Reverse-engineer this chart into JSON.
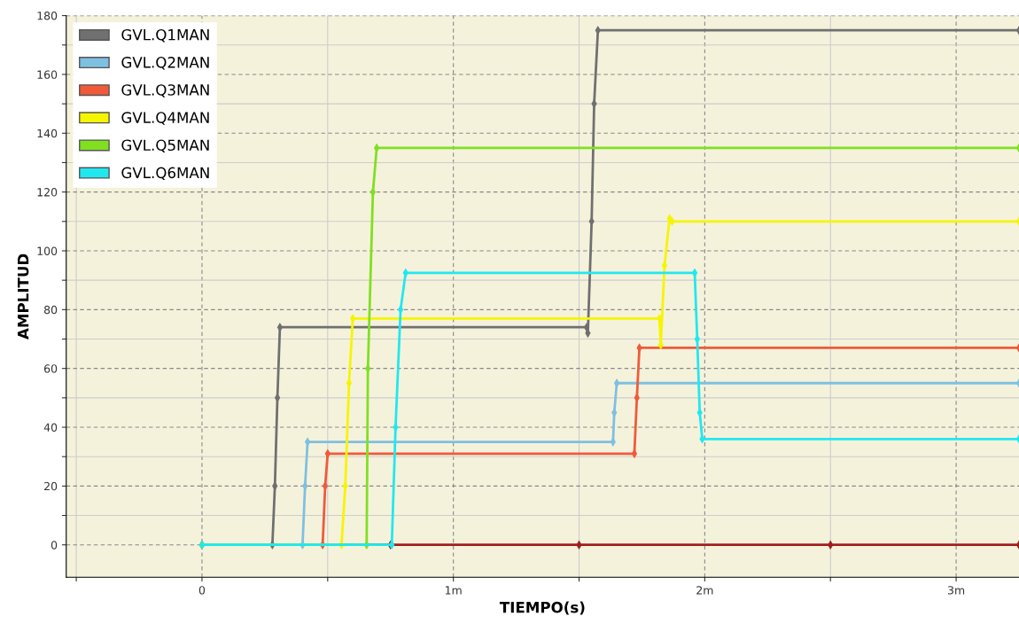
{
  "chart_data": {
    "type": "line",
    "xlabel": "TIEMPO(s)",
    "ylabel": "AMPLITUD",
    "xlim": [
      -0.54,
      3.25
    ],
    "ylim": [
      -11,
      180
    ],
    "xticks": [
      {
        "value": -0.5,
        "label": null
      },
      0,
      {
        "value": 0.5,
        "label": null
      },
      {
        "value": 1,
        "label": "1m"
      },
      {
        "value": 1.5,
        "label": null
      },
      {
        "value": 2,
        "label": "2m"
      },
      {
        "value": 2.5,
        "label": null
      },
      {
        "value": 3,
        "label": "3m"
      }
    ],
    "yticks": [
      0,
      {
        "value": 10,
        "label": null
      },
      20,
      {
        "value": 30,
        "label": null
      },
      40,
      {
        "value": 50,
        "label": null
      },
      60,
      {
        "value": 70,
        "label": null
      },
      80,
      {
        "value": 90,
        "label": null
      },
      100,
      {
        "value": 110,
        "label": null
      },
      120,
      {
        "value": 130,
        "label": null
      },
      140,
      {
        "value": 150,
        "label": null
      },
      160,
      {
        "value": 170,
        "label": null
      },
      180
    ],
    "grid": true,
    "legend": "top left",
    "marker": "diamond",
    "line_style": "solid",
    "series": [
      {
        "color": "#a02020",
        "x": [
          0,
          0.75,
          1.5,
          2.5,
          3.25
        ],
        "values": [
          0,
          0,
          0,
          0,
          0
        ]
      },
      {
        "name": "GVL.Q1MAN",
        "color": "#707070",
        "x": [
          0,
          0.28,
          0.29,
          0.3,
          0.31,
          1.53,
          1.535,
          1.55,
          1.56,
          1.575,
          3.25
        ],
        "values": [
          0,
          0,
          20,
          50,
          74,
          74,
          72,
          110,
          150,
          175,
          175
        ]
      },
      {
        "name": "GVL.Q2MAN",
        "color": "#7ec0e0",
        "x": [
          0,
          0.4,
          0.41,
          0.42,
          1.635,
          1.64,
          1.65,
          3.25
        ],
        "values": [
          0,
          0,
          20,
          35,
          35,
          45,
          55,
          55
        ]
      },
      {
        "name": "GVL.Q3MAN",
        "color": "#f05a3a",
        "x": [
          0,
          0.48,
          0.49,
          0.5,
          1.72,
          1.73,
          1.74,
          3.25
        ],
        "values": [
          0,
          0,
          20,
          31,
          31,
          50,
          67,
          67
        ]
      },
      {
        "name": "GVL.Q4MAN",
        "color": "#f5f500",
        "x": [
          0,
          0.555,
          0.57,
          0.585,
          0.6,
          1.82,
          1.825,
          1.84,
          1.86,
          1.87,
          3.25
        ],
        "values": [
          0,
          0,
          20,
          55,
          77,
          77,
          68,
          95,
          111,
          110,
          110
        ]
      },
      {
        "name": "GVL.Q5MAN",
        "color": "#80e020",
        "x": [
          0,
          0.655,
          0.66,
          0.68,
          0.695,
          3.25
        ],
        "values": [
          0,
          0,
          60,
          120,
          135,
          135
        ]
      },
      {
        "name": "GVL.Q6MAN",
        "color": "#20e8f0",
        "x": [
          0,
          0.755,
          0.77,
          0.79,
          0.81,
          1.96,
          1.97,
          1.98,
          1.99,
          3.25
        ],
        "values": [
          0,
          0,
          40,
          80,
          92.5,
          92.5,
          70,
          45,
          36,
          36
        ]
      }
    ]
  }
}
